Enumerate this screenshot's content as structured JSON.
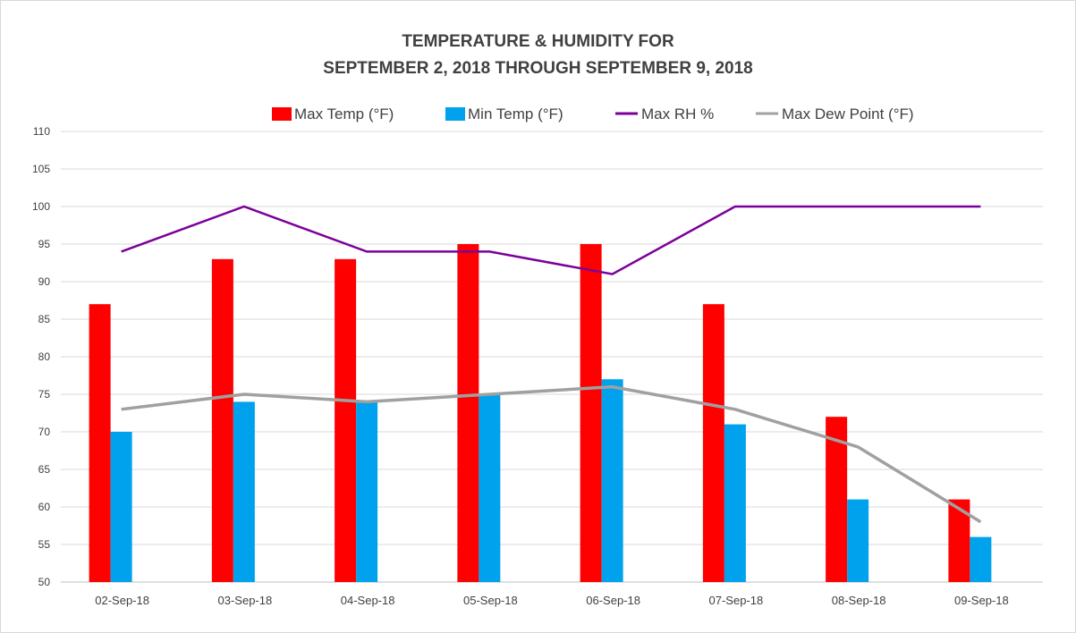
{
  "chart_data": {
    "type": "bar",
    "title": "TEMPERATURE & HUMIDITY FOR",
    "subtitle": "SEPTEMBER 2, 2018 THROUGH SEPTEMBER 9, 2018",
    "categories": [
      "02-Sep-18",
      "03-Sep-18",
      "04-Sep-18",
      "05-Sep-18",
      "06-Sep-18",
      "07-Sep-18",
      "08-Sep-18",
      "09-Sep-18"
    ],
    "ylim": [
      50,
      110
    ],
    "yticks": [
      50,
      55,
      60,
      65,
      70,
      75,
      80,
      85,
      90,
      95,
      100,
      105,
      110
    ],
    "grid": true,
    "legend_position": "top",
    "series": [
      {
        "name": "Max Temp (°F)",
        "kind": "bar",
        "color": "#ff0000",
        "values": [
          87,
          93,
          93,
          95,
          95,
          87,
          72,
          61
        ]
      },
      {
        "name": "Min Temp (°F)",
        "kind": "bar",
        "color": "#00a2ed",
        "values": [
          70,
          74,
          74,
          75,
          77,
          71,
          61,
          56
        ]
      },
      {
        "name": "Max RH %",
        "kind": "line",
        "color": "#7b0099",
        "values": [
          94,
          100,
          94,
          94,
          91,
          100,
          100,
          100
        ]
      },
      {
        "name": "Max Dew Point (°F)",
        "kind": "line",
        "color": "#a0a0a0",
        "values": [
          73,
          75,
          74,
          75,
          76,
          73,
          68,
          58
        ]
      }
    ]
  }
}
